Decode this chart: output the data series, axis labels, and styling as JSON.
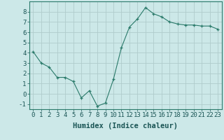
{
  "x": [
    0,
    1,
    2,
    3,
    4,
    5,
    6,
    7,
    8,
    9,
    10,
    11,
    12,
    13,
    14,
    15,
    16,
    17,
    18,
    19,
    20,
    21,
    22,
    23
  ],
  "y": [
    4.1,
    3.0,
    2.6,
    1.6,
    1.6,
    1.2,
    -0.4,
    0.3,
    -1.2,
    -0.9,
    1.4,
    4.5,
    6.5,
    7.3,
    8.4,
    7.8,
    7.5,
    7.0,
    6.8,
    6.7,
    6.7,
    6.6,
    6.6,
    6.3
  ],
  "xlabel": "Humidex (Indice chaleur)",
  "bg_color": "#cce8e8",
  "grid_color": "#b0cccc",
  "line_color": "#2a7a6a",
  "marker": "+",
  "xlim": [
    -0.5,
    23.5
  ],
  "ylim": [
    -1.5,
    9.0
  ],
  "yticks": [
    -1,
    0,
    1,
    2,
    3,
    4,
    5,
    6,
    7,
    8
  ],
  "xtick_labels": [
    "0",
    "1",
    "2",
    "3",
    "4",
    "5",
    "6",
    "7",
    "8",
    "9",
    "10",
    "11",
    "12",
    "13",
    "14",
    "15",
    "16",
    "17",
    "18",
    "19",
    "20",
    "21",
    "22",
    "23"
  ],
  "tick_fontsize": 6.5,
  "xlabel_fontsize": 7.5,
  "spine_color": "#2a7a6a"
}
